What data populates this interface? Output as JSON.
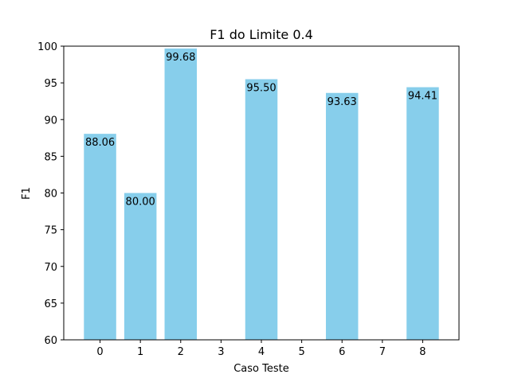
{
  "chart_data": {
    "type": "bar",
    "title": "F1 do Limite 0.4",
    "xlabel": "Caso Teste",
    "ylabel": "F1",
    "x_ticks": [
      "0",
      "1",
      "2",
      "3",
      "4",
      "5",
      "6",
      "7",
      "8"
    ],
    "categories": [
      0,
      1,
      2,
      4,
      6,
      8
    ],
    "values": [
      88.06,
      80.0,
      99.68,
      95.5,
      93.63,
      94.41
    ],
    "value_labels": [
      "88.06",
      "80.00",
      "99.68",
      "95.50",
      "93.63",
      "94.41"
    ],
    "xlim": [
      -0.9,
      8.9
    ],
    "ylim": [
      60,
      100
    ],
    "y_ticks": [
      60,
      65,
      70,
      75,
      80,
      85,
      90,
      95,
      100
    ],
    "bar_color": "#87ceeb",
    "grid": false,
    "legend": "none"
  }
}
